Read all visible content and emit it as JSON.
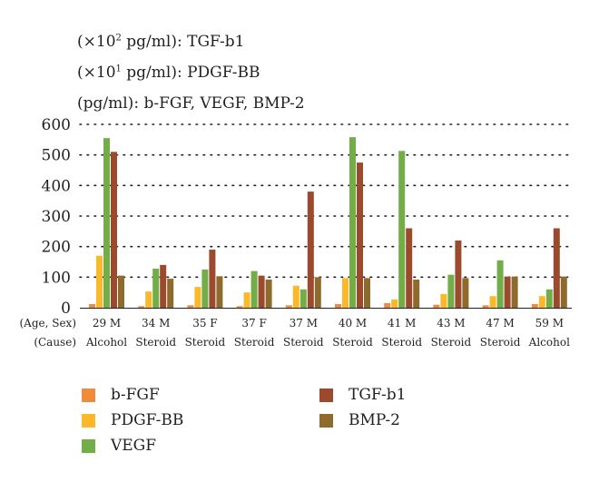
{
  "units": {
    "tgf": {
      "prefix": "(×10",
      "exp": "2",
      "suffix": " pg/ml): TGF-b1"
    },
    "pdgf": {
      "prefix": "(×10",
      "exp": "1",
      "suffix": " pg/ml): PDGF-BB"
    },
    "others": "(pg/ml): b-FGF, VEGF, BMP-2"
  },
  "chart_data": {
    "type": "bar",
    "row_labels": [
      "(Age, Sex)",
      "(Cause)"
    ],
    "categories": [
      {
        "age_sex": "29 M",
        "cause": "Alcohol"
      },
      {
        "age_sex": "34 M",
        "cause": "Steroid"
      },
      {
        "age_sex": "35 F",
        "cause": "Steroid"
      },
      {
        "age_sex": "37 F",
        "cause": "Steroid"
      },
      {
        "age_sex": "37 M",
        "cause": "Steroid"
      },
      {
        "age_sex": "40 M",
        "cause": "Steroid"
      },
      {
        "age_sex": "41 M",
        "cause": "Steroid"
      },
      {
        "age_sex": "43 M",
        "cause": "Steroid"
      },
      {
        "age_sex": "47 M",
        "cause": "Steroid"
      },
      {
        "age_sex": "59 M",
        "cause": "Alcohol"
      }
    ],
    "series": [
      {
        "name": "b-FGF",
        "color": "#f08a3c",
        "values": [
          12,
          5,
          8,
          5,
          8,
          12,
          15,
          10,
          8,
          12
        ]
      },
      {
        "name": "PDGF-BB",
        "color": "#fbb92a",
        "values": [
          170,
          53,
          68,
          50,
          72,
          97,
          27,
          45,
          38,
          38
        ]
      },
      {
        "name": "VEGF",
        "color": "#72ad47",
        "values": [
          555,
          128,
          125,
          120,
          60,
          558,
          513,
          108,
          155,
          60
        ]
      },
      {
        "name": "TGF-b1",
        "color": "#9c4a2e",
        "values": [
          510,
          140,
          190,
          105,
          380,
          475,
          260,
          220,
          102,
          260
        ]
      },
      {
        "name": "BMP-2",
        "color": "#8e6b2d",
        "values": [
          105,
          95,
          103,
          92,
          100,
          97,
          92,
          97,
          102,
          102
        ]
      }
    ],
    "yticks": [
      0,
      100,
      200,
      300,
      400,
      500,
      600
    ],
    "ylim": [
      0,
      600
    ],
    "grid": true,
    "legend_placement": "bottom"
  }
}
